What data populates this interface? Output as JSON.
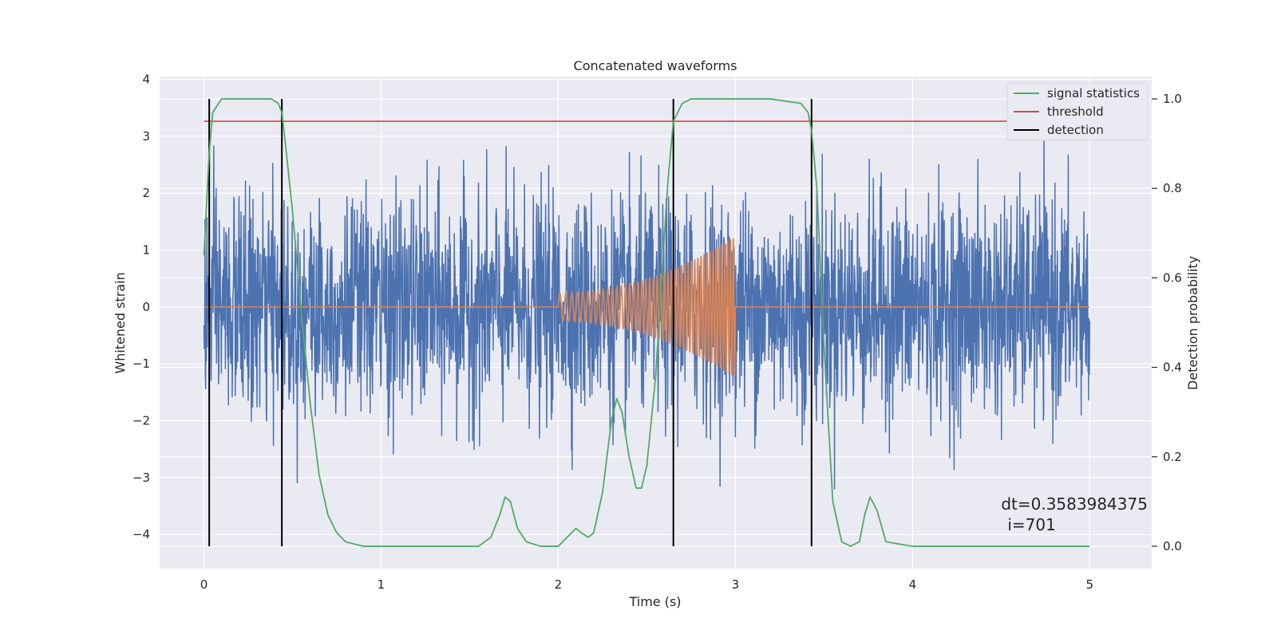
{
  "chart_data": {
    "type": "line",
    "title": "Concatenated waveforms",
    "xlabel": "Time (s)",
    "ylabel": "Whitened strain",
    "y2label": "Detection probability",
    "xlim": [
      -0.25,
      5.35
    ],
    "ylim": [
      -4.6,
      4.05
    ],
    "y2lim": [
      -0.05,
      1.05
    ],
    "xticks": [
      0,
      1,
      2,
      3,
      4,
      5
    ],
    "yticks": [
      -4,
      -3,
      -2,
      -1,
      0,
      1,
      2,
      3,
      4
    ],
    "y2ticks": [
      0.0,
      0.2,
      0.4,
      0.6,
      0.8,
      1.0
    ],
    "xtick_labels": [
      "0",
      "1",
      "2",
      "3",
      "4",
      "5"
    ],
    "ytick_labels": [
      "−4",
      "−3",
      "−2",
      "−1",
      "0",
      "1",
      "2",
      "3",
      "4"
    ],
    "y2tick_labels": [
      "0.0",
      "0.2",
      "0.4",
      "0.6",
      "0.8",
      "1.0"
    ],
    "grid": true,
    "legend_position": "top-right",
    "colors": {
      "background": "#eaeaf2",
      "grid": "#ffffff",
      "strain": "#4c72b0",
      "template": "#dd8452",
      "signal": "#55a868",
      "threshold": "#c44e52",
      "detection": "#000000"
    },
    "series": [
      {
        "name": "",
        "axis": "left",
        "kind": "noise",
        "x_range": [
          0,
          5
        ],
        "envelope": [
          -3.2,
          3.65
        ]
      },
      {
        "name": "",
        "axis": "left",
        "kind": "chirp",
        "flat_value": 0,
        "chirp_start": 2.0,
        "chirp_end": 3.0,
        "amplitude_start": 0.25,
        "amplitude_end": 1.25
      },
      {
        "name": "signal statistics",
        "axis": "right",
        "x": [
          0,
          0.03,
          0.05,
          0.1,
          0.15,
          0.2,
          0.3,
          0.38,
          0.42,
          0.44,
          0.46,
          0.5,
          0.55,
          0.6,
          0.65,
          0.7,
          0.75,
          0.8,
          0.9,
          1.0,
          1.2,
          1.4,
          1.55,
          1.62,
          1.67,
          1.7,
          1.73,
          1.77,
          1.82,
          1.9,
          2.0,
          2.05,
          2.1,
          2.13,
          2.17,
          2.2,
          2.25,
          2.3,
          2.33,
          2.36,
          2.4,
          2.44,
          2.47,
          2.5,
          2.55,
          2.6,
          2.62,
          2.65,
          2.7,
          2.75,
          2.8,
          3.0,
          3.2,
          3.37,
          3.41,
          3.43,
          3.46,
          3.5,
          3.55,
          3.6,
          3.65,
          3.7,
          3.73,
          3.76,
          3.8,
          3.85,
          4.0,
          4.5,
          5.0
        ],
        "y": [
          0.65,
          0.88,
          0.97,
          1.0,
          1.0,
          1.0,
          1.0,
          1.0,
          0.99,
          0.97,
          0.9,
          0.75,
          0.52,
          0.32,
          0.16,
          0.07,
          0.03,
          0.01,
          0.0,
          0.0,
          0.0,
          0.0,
          0.0,
          0.02,
          0.07,
          0.11,
          0.1,
          0.04,
          0.01,
          0.0,
          0.0,
          0.02,
          0.04,
          0.03,
          0.02,
          0.03,
          0.12,
          0.28,
          0.33,
          0.3,
          0.2,
          0.13,
          0.13,
          0.18,
          0.38,
          0.7,
          0.82,
          0.95,
          0.99,
          1.0,
          1.0,
          1.0,
          1.0,
          0.99,
          0.97,
          0.93,
          0.8,
          0.45,
          0.1,
          0.01,
          0.0,
          0.01,
          0.07,
          0.11,
          0.08,
          0.01,
          0.0,
          0.0,
          0.0
        ]
      },
      {
        "name": "threshold",
        "axis": "right",
        "x": [
          0,
          5
        ],
        "y": [
          0.95,
          0.95
        ]
      },
      {
        "name": "detection",
        "axis": "right",
        "vlines": [
          0.03,
          0.44,
          2.65,
          3.43
        ],
        "y_range": [
          0.0,
          1.0
        ]
      }
    ],
    "annotation": {
      "line1": "dt=0.3583984375",
      "line2": "i=701",
      "x": 4.5,
      "y": -3.45
    }
  }
}
